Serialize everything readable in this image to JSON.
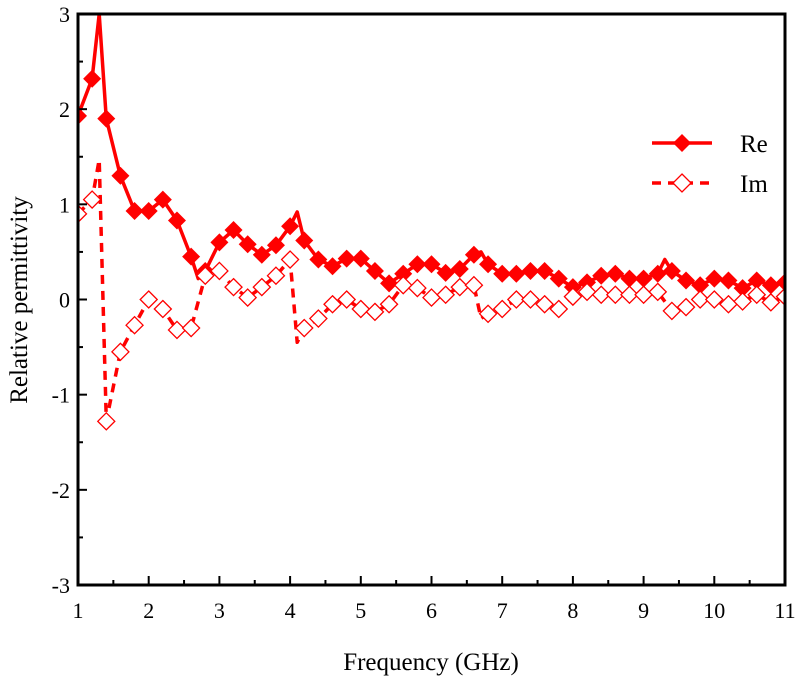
{
  "chart_data": {
    "type": "line",
    "title": "",
    "xlabel": "Frequency (GHz)",
    "ylabel": "Relative permittivity",
    "xlim": [
      1,
      11
    ],
    "ylim": [
      -3,
      3
    ],
    "xticks": [
      "1",
      "2",
      "3",
      "4",
      "5",
      "6",
      "7",
      "8",
      "9",
      "10",
      "11"
    ],
    "yticks": [
      "-3",
      "-2",
      "-1",
      "0",
      "1",
      "2",
      "3"
    ],
    "grid": false,
    "legend_position": "top-right",
    "color": "#ff0000",
    "series": [
      {
        "name": "Re",
        "style": "solid-filled-diamond",
        "x": [
          1.0,
          1.2,
          1.3,
          1.4,
          1.6,
          1.8,
          2.0,
          2.2,
          2.4,
          2.6,
          2.7,
          2.8,
          3.0,
          3.2,
          3.4,
          3.6,
          3.8,
          4.0,
          4.1,
          4.2,
          4.4,
          4.6,
          4.8,
          5.0,
          5.2,
          5.4,
          5.6,
          5.8,
          6.0,
          6.2,
          6.4,
          6.6,
          6.7,
          6.8,
          7.0,
          7.2,
          7.4,
          7.6,
          7.8,
          8.0,
          8.2,
          8.4,
          8.6,
          8.8,
          9.0,
          9.2,
          9.3,
          9.4,
          9.6,
          9.8,
          10.0,
          10.2,
          10.4,
          10.6,
          10.8,
          11.0
        ],
        "values": [
          1.93,
          2.32,
          3.0,
          1.9,
          1.3,
          0.93,
          0.93,
          1.05,
          0.83,
          0.45,
          0.22,
          0.3,
          0.6,
          0.73,
          0.58,
          0.47,
          0.57,
          0.77,
          0.92,
          0.62,
          0.42,
          0.35,
          0.43,
          0.43,
          0.3,
          0.17,
          0.27,
          0.37,
          0.37,
          0.28,
          0.32,
          0.47,
          0.5,
          0.37,
          0.27,
          0.27,
          0.3,
          0.3,
          0.22,
          0.13,
          0.18,
          0.25,
          0.27,
          0.22,
          0.22,
          0.27,
          0.42,
          0.3,
          0.2,
          0.15,
          0.22,
          0.2,
          0.12,
          0.2,
          0.15,
          0.18
        ]
      },
      {
        "name": "Im",
        "style": "dashed-open-diamond",
        "x": [
          1.0,
          1.2,
          1.3,
          1.4,
          1.6,
          1.8,
          2.0,
          2.2,
          2.4,
          2.6,
          2.8,
          3.0,
          3.2,
          3.4,
          3.6,
          3.8,
          4.0,
          4.1,
          4.2,
          4.4,
          4.6,
          4.8,
          5.0,
          5.2,
          5.4,
          5.6,
          5.8,
          6.0,
          6.2,
          6.4,
          6.6,
          6.7,
          6.8,
          7.0,
          7.2,
          7.4,
          7.6,
          7.8,
          8.0,
          8.2,
          8.4,
          8.6,
          8.8,
          9.0,
          9.2,
          9.4,
          9.6,
          9.8,
          10.0,
          10.2,
          10.4,
          10.6,
          10.8,
          11.0
        ],
        "values": [
          0.9,
          1.05,
          1.47,
          -1.28,
          -0.55,
          -0.27,
          0.0,
          -0.1,
          -0.32,
          -0.3,
          0.25,
          0.3,
          0.13,
          0.02,
          0.13,
          0.25,
          0.42,
          -0.45,
          -0.3,
          -0.2,
          -0.05,
          0.0,
          -0.1,
          -0.13,
          -0.05,
          0.15,
          0.12,
          0.02,
          0.05,
          0.13,
          0.15,
          -0.2,
          -0.15,
          -0.1,
          0.0,
          0.0,
          -0.05,
          -0.1,
          0.03,
          0.08,
          0.05,
          0.05,
          0.05,
          0.05,
          0.08,
          -0.12,
          -0.08,
          0.0,
          0.0,
          -0.05,
          -0.02,
          0.05,
          -0.03,
          0.03
        ]
      }
    ]
  }
}
